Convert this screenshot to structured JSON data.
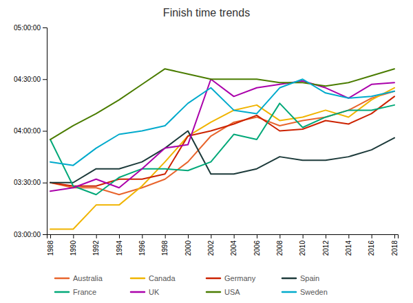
{
  "chart_data": {
    "type": "line",
    "title": "Finish time trends",
    "x": [
      1988,
      1990,
      1992,
      1994,
      1996,
      1998,
      2000,
      2002,
      2004,
      2006,
      2008,
      2010,
      2012,
      2014,
      2016,
      2018
    ],
    "series": [
      {
        "name": "Australia",
        "color": "#E8642C",
        "values": [
          210,
          207,
          207,
          203,
          207,
          212,
          222,
          237,
          245,
          248,
          243,
          246,
          248,
          252,
          259,
          263
        ]
      },
      {
        "name": "Canada",
        "color": "#F0B400",
        "values": [
          183,
          183,
          197,
          197,
          208,
          222,
          237,
          245,
          252,
          255,
          246,
          248,
          252,
          248,
          258,
          265
        ]
      },
      {
        "name": "Germany",
        "color": "#CC2200",
        "values": [
          210,
          208,
          208,
          212,
          212,
          215,
          237,
          240,
          244,
          249,
          240,
          241,
          246,
          244,
          250,
          260
        ]
      },
      {
        "name": "Spain",
        "color": "#1C3A3A",
        "values": [
          210,
          210,
          218,
          218,
          222,
          230,
          240,
          215,
          215,
          218,
          225,
          223,
          223,
          225,
          229,
          236
        ]
      },
      {
        "name": "France",
        "color": "#00A878",
        "values": [
          235,
          208,
          203,
          213,
          218,
          218,
          217,
          222,
          238,
          235,
          256,
          242,
          248,
          252,
          252,
          255
        ]
      },
      {
        "name": "UK",
        "color": "#AA00AA",
        "values": [
          205,
          207,
          212,
          207,
          218,
          230,
          232,
          270,
          260,
          265,
          267,
          269,
          265,
          259,
          267,
          268
        ]
      },
      {
        "name": "USA",
        "color": "#4A7C00",
        "values": [
          235,
          243,
          250,
          258,
          267,
          276,
          273,
          270,
          270,
          270,
          268,
          268,
          266,
          268,
          272,
          276
        ]
      },
      {
        "name": "Sweden",
        "color": "#00AACC",
        "values": [
          222,
          220,
          230,
          238,
          240,
          243,
          256,
          265,
          252,
          250,
          265,
          270,
          262,
          259,
          260,
          263
        ]
      }
    ],
    "xlim": [
      1987.7,
      2018.3
    ],
    "xticks": [
      1988,
      1990,
      1992,
      1994,
      1996,
      1998,
      2000,
      2002,
      2004,
      2006,
      2008,
      2010,
      2012,
      2014,
      2016,
      2018
    ],
    "ylim": [
      180,
      300
    ],
    "yticks": [
      {
        "value": 180,
        "label": "03:00:00"
      },
      {
        "value": 210,
        "label": "03:30:00"
      },
      {
        "value": 240,
        "label": "04:00:00"
      },
      {
        "value": 270,
        "label": "04:30:00"
      },
      {
        "value": 300,
        "label": "05:00:00"
      }
    ],
    "grid": false,
    "legend": "bottom"
  }
}
